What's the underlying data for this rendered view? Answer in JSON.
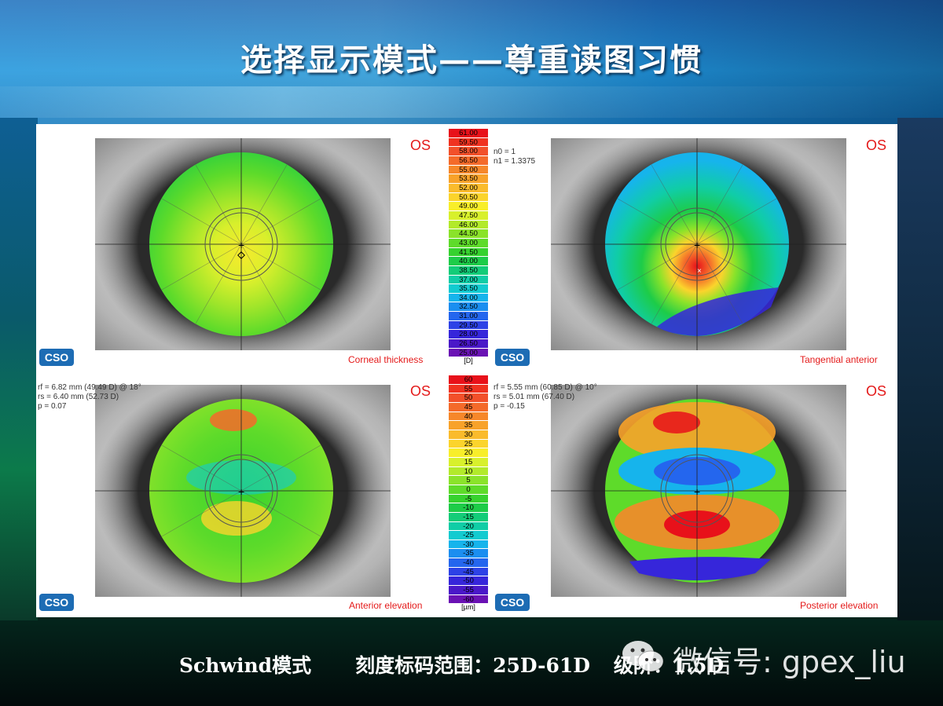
{
  "title": "选择显示模式——尊重读图习惯",
  "maps": [
    {
      "key": "corneal",
      "label": "Corneal thickness",
      "eye": "OS",
      "info": ""
    },
    {
      "key": "tangential",
      "label": "Tangential anterior",
      "eye": "OS",
      "info": "n0 = 1\nn1 = 1.3375"
    },
    {
      "key": "anterior",
      "label": "Anterior elevation",
      "eye": "OS",
      "info": "rf = 6.82 mm (49.49 D) @ 18°\nrs = 6.40 mm (52.73 D)\np = 0.07"
    },
    {
      "key": "posterior",
      "label": "Posterior elevation",
      "eye": "OS",
      "info": "rf = 5.55 mm (60.85 D) @ 10°\nrs = 5.01 mm (67.40 D)\np = -0.15"
    }
  ],
  "logo_text": "CSO",
  "scale_top": {
    "unit": "[D]",
    "values": [
      "61.00",
      "59.50",
      "58.00",
      "56.50",
      "55.00",
      "53.50",
      "52.00",
      "50.50",
      "49.00",
      "47.50",
      "46.00",
      "44.50",
      "43.00",
      "41.50",
      "40.00",
      "38.50",
      "37.00",
      "35.50",
      "34.00",
      "32.50",
      "31.00",
      "29.50",
      "28.00",
      "26.50",
      "25.00"
    ],
    "colors": [
      "#e8111a",
      "#f03220",
      "#f2502a",
      "#f46a2a",
      "#f6872a",
      "#f8a22a",
      "#fabb2c",
      "#fbd42c",
      "#f8ee2a",
      "#d8f02c",
      "#b2ea2a",
      "#8ae32a",
      "#5edb2a",
      "#36d22e",
      "#1dcc48",
      "#13cc78",
      "#10cda6",
      "#12cbd0",
      "#16b4ec",
      "#1b8ef0",
      "#2466ee",
      "#2d42e6",
      "#3626da",
      "#4a18c8",
      "#6a12b4"
    ]
  },
  "scale_bottom": {
    "unit": "[µm]",
    "values": [
      "60",
      "55",
      "50",
      "45",
      "40",
      "35",
      "30",
      "25",
      "20",
      "15",
      "10",
      "5",
      "0",
      "-5",
      "-10",
      "-15",
      "-20",
      "-25",
      "-30",
      "-35",
      "-40",
      "-45",
      "-50",
      "-55",
      "-60"
    ],
    "colors": [
      "#e8111a",
      "#f03220",
      "#f2502a",
      "#f46a2a",
      "#f6872a",
      "#f8a22a",
      "#fabb2c",
      "#fbd42c",
      "#f8ee2a",
      "#d8f02c",
      "#b2ea2a",
      "#8ae32a",
      "#5edb2a",
      "#36d22e",
      "#1dcc48",
      "#13cc78",
      "#10cda6",
      "#12cbd0",
      "#16b4ec",
      "#1b8ef0",
      "#2466ee",
      "#2d42e6",
      "#3626da",
      "#4a18c8",
      "#6a12b4"
    ]
  },
  "footer": {
    "mode": "Schwind模式",
    "range": "刻度标码范围：25D-61D",
    "step": "级阶：1.5D"
  },
  "watermark": "微信号: gpex_liu"
}
